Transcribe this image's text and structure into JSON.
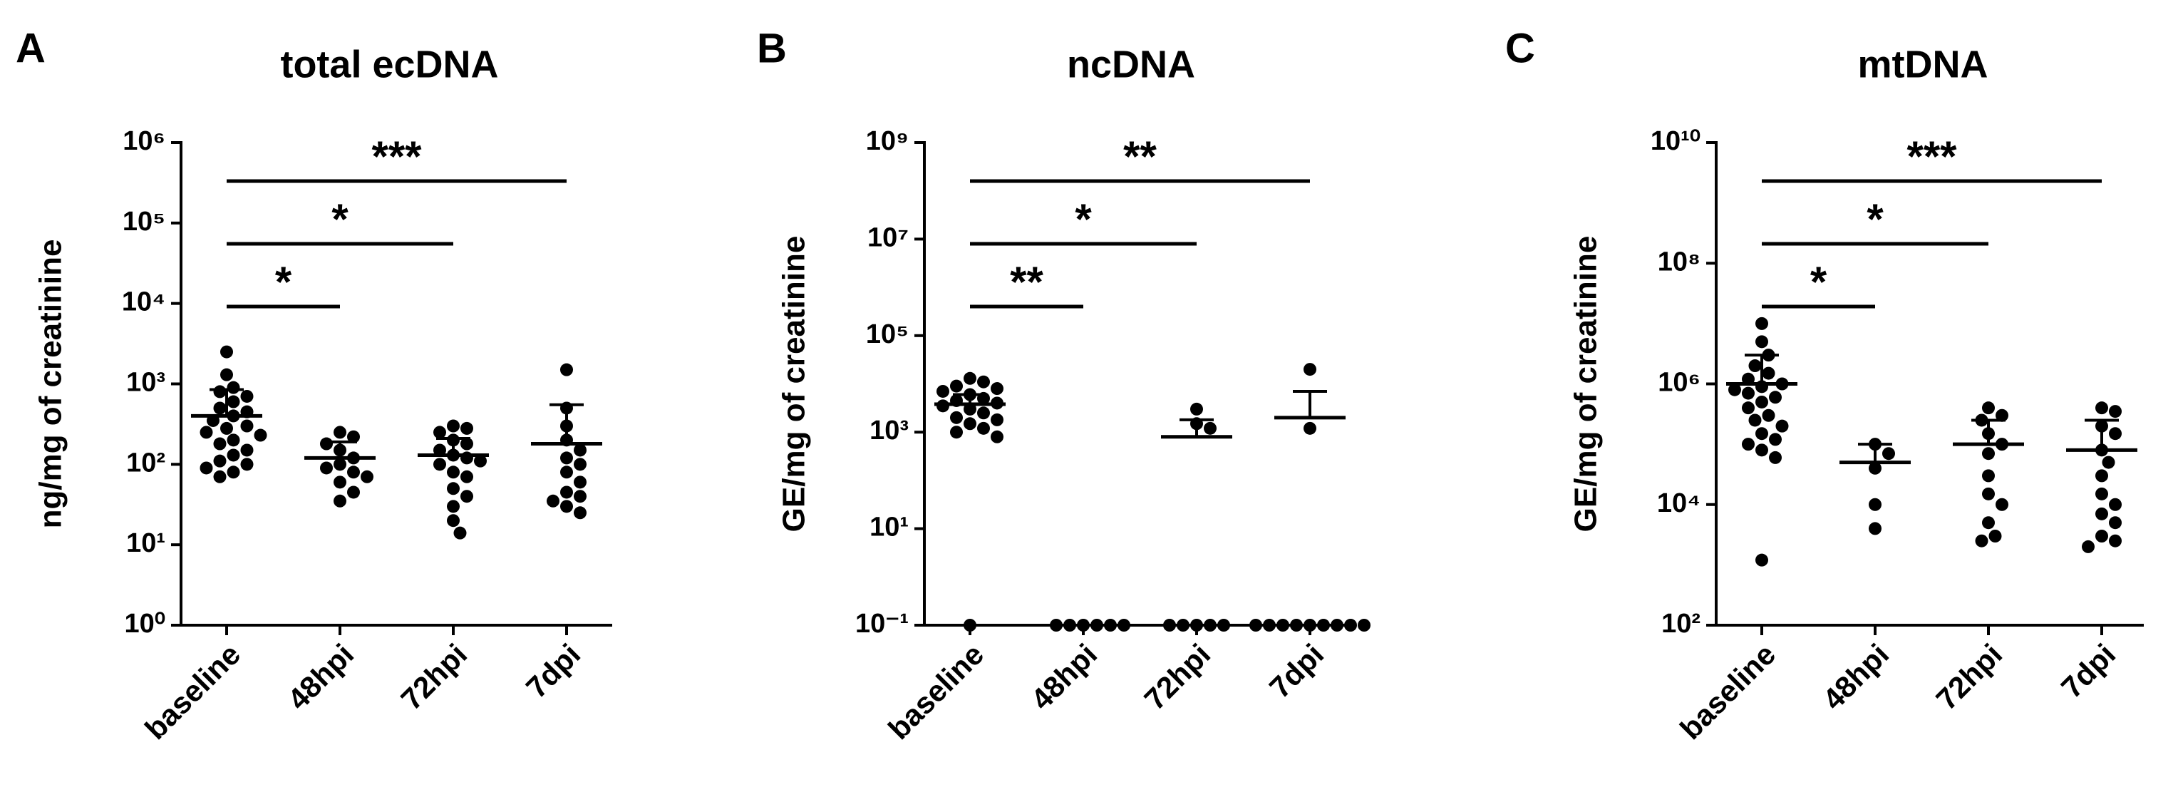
{
  "chart_data": [
    {
      "type": "dotplot",
      "panel": "A",
      "title": "total ecDNA",
      "ylabel": "ng/mg of creatinine",
      "log": true,
      "color": "#000000",
      "categories": [
        "baseline",
        "48hpi",
        "72hpi",
        "7dpi"
      ],
      "values": [
        [
          2500,
          1300,
          900,
          800,
          700,
          600,
          500,
          450,
          400,
          350,
          300,
          280,
          250,
          230,
          200,
          180,
          150,
          130,
          110,
          100,
          90,
          80,
          70
        ],
        [
          250,
          220,
          180,
          150,
          120,
          100,
          90,
          80,
          70,
          60,
          45,
          35
        ],
        [
          300,
          280,
          250,
          200,
          180,
          150,
          130,
          120,
          110,
          100,
          80,
          70,
          50,
          40,
          30,
          20,
          14
        ],
        [
          1500,
          500,
          300,
          200,
          150,
          120,
          100,
          80,
          60,
          45,
          40,
          35,
          30,
          25
        ]
      ],
      "means": [
        400,
        120,
        130,
        180
      ],
      "errors_upper": [
        850,
        190,
        210,
        550
      ],
      "comparisons": [
        {
          "groups": [
            0,
            1
          ],
          "label": "*"
        },
        {
          "groups": [
            0,
            2
          ],
          "label": "*"
        },
        {
          "groups": [
            0,
            3
          ],
          "label": "***"
        }
      ],
      "ylim": [
        1,
        1000000
      ],
      "yticks": [
        {
          "value": 1,
          "label": "10⁰"
        },
        {
          "value": 10,
          "label": "10¹"
        },
        {
          "value": 100,
          "label": "10²"
        },
        {
          "value": 1000,
          "label": "10³"
        },
        {
          "value": 10000,
          "label": "10⁴"
        },
        {
          "value": 100000,
          "label": "10⁵"
        },
        {
          "value": 1000000,
          "label": "10⁶"
        }
      ]
    },
    {
      "type": "dotplot",
      "panel": "B",
      "title": "ncDNA",
      "ylabel": "GE/mg of creatinine",
      "log": true,
      "color": "#000000",
      "categories": [
        "baseline",
        "48hpi",
        "72hpi",
        "7dpi"
      ],
      "values": [
        [
          13000,
          11000,
          9000,
          8000,
          7000,
          6000,
          5000,
          4500,
          4000,
          3500,
          3000,
          2500,
          2000,
          1800,
          1500,
          1200,
          1000,
          800,
          0.1
        ],
        [
          0.1,
          0.1,
          0.1,
          0.1,
          0.1,
          0.1
        ],
        [
          3000,
          1500,
          1200,
          0.1,
          0.1,
          0.1,
          0.1,
          0.1
        ],
        [
          20000,
          1200,
          0.1,
          0.1,
          0.1,
          0.1,
          0.1,
          0.1,
          0.1,
          0.1,
          0.1
        ]
      ],
      "means": [
        3800,
        null,
        800,
        2000
      ],
      "errors_upper": [
        6000,
        null,
        1800,
        7000
      ],
      "comparisons": [
        {
          "groups": [
            0,
            1
          ],
          "label": "**"
        },
        {
          "groups": [
            0,
            2
          ],
          "label": "*"
        },
        {
          "groups": [
            0,
            3
          ],
          "label": "**"
        }
      ],
      "ylim": [
        0.1,
        1000000000
      ],
      "yticks": [
        {
          "value": 0.1,
          "label": "10⁻¹"
        },
        {
          "value": 10,
          "label": "10¹"
        },
        {
          "value": 1000,
          "label": "10³"
        },
        {
          "value": 100000,
          "label": "10⁵"
        },
        {
          "value": 10000000,
          "label": "10⁷"
        },
        {
          "value": 1000000000,
          "label": "10⁹"
        }
      ]
    },
    {
      "type": "dotplot",
      "panel": "C",
      "title": "mtDNA",
      "ylabel": "GE/mg of creatinine",
      "log": true,
      "color": "#000000",
      "categories": [
        "baseline",
        "48hpi",
        "72hpi",
        "7dpi"
      ],
      "values": [
        [
          10000000,
          5000000,
          3000000,
          2000000,
          1500000,
          1200000,
          1000000,
          900000,
          800000,
          700000,
          600000,
          500000,
          400000,
          300000,
          250000,
          200000,
          150000,
          120000,
          100000,
          80000,
          60000,
          1200
        ],
        [
          100000,
          70000,
          40000,
          10000,
          4000
        ],
        [
          400000,
          300000,
          250000,
          150000,
          100000,
          70000,
          30000,
          15000,
          10000,
          5000,
          3000,
          2500
        ],
        [
          400000,
          350000,
          200000,
          150000,
          80000,
          50000,
          30000,
          15000,
          10000,
          7000,
          5000,
          3000,
          2500,
          2000
        ]
      ],
      "means": [
        1000000,
        50000,
        100000,
        80000
      ],
      "errors_upper": [
        3000000,
        100000,
        250000,
        250000
      ],
      "comparisons": [
        {
          "groups": [
            0,
            1
          ],
          "label": "*"
        },
        {
          "groups": [
            0,
            2
          ],
          "label": "*"
        },
        {
          "groups": [
            0,
            3
          ],
          "label": "***"
        }
      ],
      "ylim": [
        100,
        10000000000
      ],
      "yticks": [
        {
          "value": 100,
          "label": "10²"
        },
        {
          "value": 10000,
          "label": "10⁴"
        },
        {
          "value": 1000000,
          "label": "10⁶"
        },
        {
          "value": 100000000,
          "label": "10⁸"
        },
        {
          "value": 10000000000,
          "label": "10¹⁰"
        }
      ]
    }
  ]
}
